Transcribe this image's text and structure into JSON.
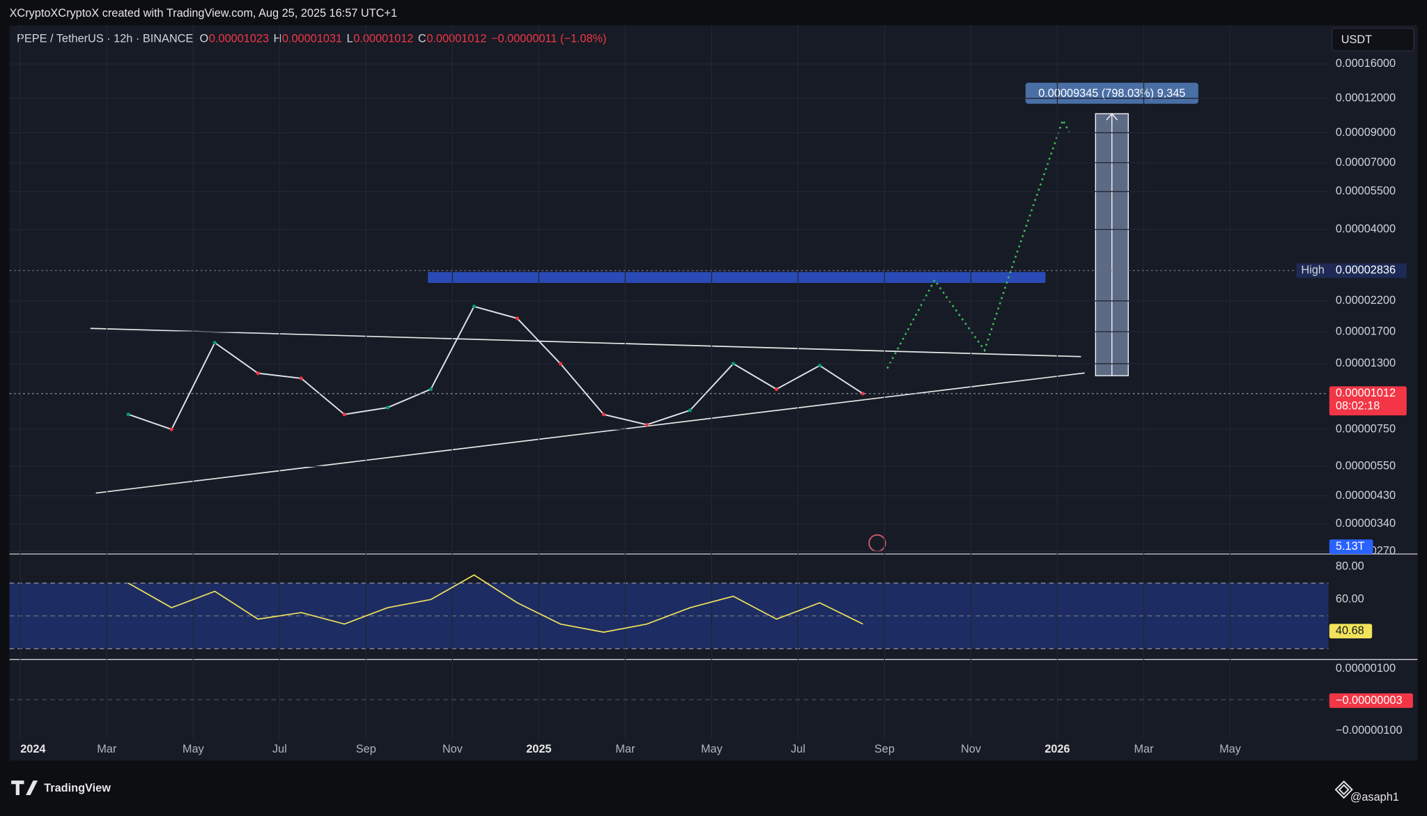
{
  "header": {
    "text": "XCryptoXCryptoX created with TradingView.com, Aug 25, 2025 16:57 UTC+1"
  },
  "legend": {
    "symbol": "PEPE / TetherUS · 12h · BINANCE",
    "open_label": "O",
    "open": "0.00001023",
    "high_label": "H",
    "high": "0.00001031",
    "low_label": "L",
    "low": "0.00001012",
    "close_label": "C",
    "close": "0.00001012",
    "change": "−0.00000011 (−1.08%)"
  },
  "currency_button": "USDT",
  "chart_data": [
    {
      "type": "line",
      "color": "#e0e3eb",
      "log_scale": true,
      "x": [
        "2024-03",
        "2024-04",
        "2024-05",
        "2024-06",
        "2024-07",
        "2024-08",
        "2024-09",
        "2024-10",
        "2024-11",
        "2024-12",
        "2025-01",
        "2025-02",
        "2025-03",
        "2025-04",
        "2025-05",
        "2025-06",
        "2025-07",
        "2025-08"
      ],
      "values": [
        8.5e-06,
        7.5e-06,
        1.55e-05,
        1.2e-05,
        1.15e-05,
        8.5e-06,
        9e-06,
        1.05e-05,
        2.1e-05,
        1.9e-05,
        1.3e-05,
        8.5e-06,
        7.8e-06,
        8.8e-06,
        1.3e-05,
        1.05e-05,
        1.28e-05,
        1.012e-05
      ],
      "ylim": [
        2.64e-06,
        0.000221
      ],
      "yticks": [
        {
          "value": 0.00016,
          "label": "0.00016000"
        },
        {
          "value": 0.00012,
          "label": "0.00012000"
        },
        {
          "value": 9e-05,
          "label": "0.00009000"
        },
        {
          "value": 7e-05,
          "label": "0.00007000"
        },
        {
          "value": 5.5e-05,
          "label": "0.00005500"
        },
        {
          "value": 4e-05,
          "label": "0.00004000"
        },
        {
          "value": 2.2e-05,
          "label": "0.00002200"
        },
        {
          "value": 1.7e-05,
          "label": "0.00001700"
        },
        {
          "value": 1.3e-05,
          "label": "0.00001300"
        },
        {
          "value": 7.5e-06,
          "label": "0.00000750"
        },
        {
          "value": 5.5e-06,
          "label": "0.00000550"
        },
        {
          "value": 4.3e-06,
          "label": "0.00000430"
        },
        {
          "value": 3.4e-06,
          "label": "0.00000340"
        },
        {
          "value": 2.7e-06,
          "label": "0.00000270"
        }
      ],
      "xticks": [
        {
          "value": "2024-01",
          "label": "2024"
        },
        {
          "value": "2024-03",
          "label": "Mar"
        },
        {
          "value": "2024-05",
          "label": "May"
        },
        {
          "value": "2024-07",
          "label": "Jul"
        },
        {
          "value": "2024-09",
          "label": "Sep"
        },
        {
          "value": "2024-11",
          "label": "Nov"
        },
        {
          "value": "2025-01",
          "label": "2025"
        },
        {
          "value": "2025-03",
          "label": "Mar"
        },
        {
          "value": "2025-05",
          "label": "May"
        },
        {
          "value": "2025-07",
          "label": "Jul"
        },
        {
          "value": "2025-09",
          "label": "Sep"
        },
        {
          "value": "2025-11",
          "label": "Nov"
        },
        {
          "value": "2026-01",
          "label": "2026"
        },
        {
          "value": "2026-03",
          "label": "Mar"
        },
        {
          "value": "2026-05",
          "label": "May"
        }
      ],
      "high_name": "High",
      "high": {
        "value": 2.836e-05,
        "label": "0.00002836"
      },
      "last": {
        "value": 1.012e-05,
        "label": "0.00001012"
      },
      "countdown": "08:02:18",
      "volume": "5.13T",
      "measure": "0.00009345 (798.03%) 9,345"
    },
    {
      "type": "line",
      "color": "#f2e35a",
      "x": [
        "2024-03",
        "2024-04",
        "2024-05",
        "2024-06",
        "2024-07",
        "2024-08",
        "2024-09",
        "2024-10",
        "2024-11",
        "2024-12",
        "2025-01",
        "2025-02",
        "2025-03",
        "2025-04",
        "2025-05",
        "2025-06",
        "2025-07",
        "2025-08"
      ],
      "values": [
        70,
        55,
        65,
        48,
        52,
        45,
        55,
        60,
        75,
        58,
        45,
        40,
        45,
        55,
        62,
        48,
        58,
        45
      ],
      "ylim": [
        23.3,
        86.7
      ],
      "yticks": [
        {
          "value": 80,
          "label": "80.00"
        },
        {
          "value": 60,
          "label": "60.00"
        }
      ],
      "last": 40.68
    },
    {
      "type": "oscillator",
      "ylim": [
        -1.26e-06,
        1.24e-06
      ],
      "yticks": [
        {
          "value": 1e-06,
          "label": "0.00000100"
        },
        {
          "value": -1e-06,
          "label": "−0.00000100"
        }
      ],
      "last": {
        "value": -3e-08,
        "label": "−0.00000003"
      }
    }
  ],
  "footer": {
    "brand": "TradingView",
    "watermark": "@asaph1"
  }
}
